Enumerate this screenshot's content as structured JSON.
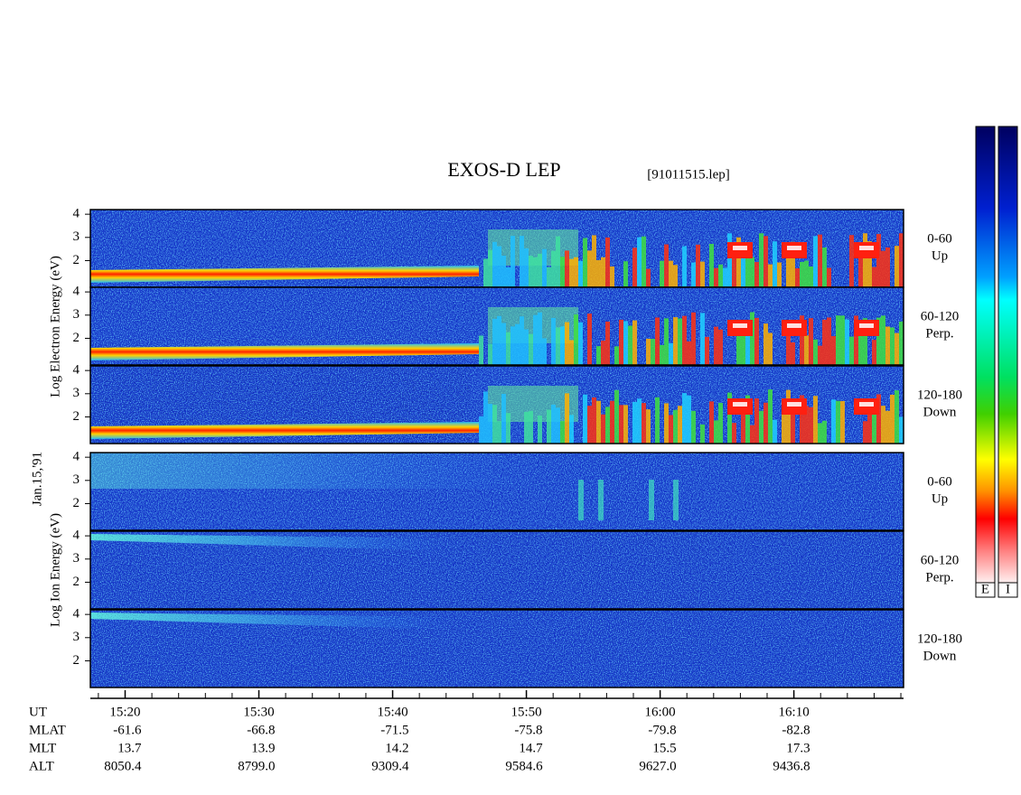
{
  "chart_data": {
    "type": "spectrogram",
    "title": "EXOS-D LEP",
    "file": "[91011515.lep]",
    "date": "Jan.15,'91",
    "xlim": [
      917.4,
      978.2
    ],
    "xticks": [
      {
        "value": 920,
        "label": "15:20"
      },
      {
        "value": 930,
        "label": "15:30"
      },
      {
        "value": 940,
        "label": "15:40"
      },
      {
        "value": 950,
        "label": "15:50"
      },
      {
        "value": 960,
        "label": "16:00"
      },
      {
        "value": 970,
        "label": "16:10"
      }
    ],
    "ylim": [
      0.85,
      4.2
    ],
    "yticks": [
      2,
      3,
      4
    ],
    "groups": [
      {
        "label": "Log Electron Energy (eV)",
        "species": "electron",
        "panels": [
          {
            "pitch": "0-60",
            "direction": "Up"
          },
          {
            "pitch": "60-120",
            "direction": "Perp."
          },
          {
            "pitch": "120-180",
            "direction": "Down"
          }
        ]
      },
      {
        "label": "Log Ion Energy (eV)",
        "species": "ion",
        "panels": [
          {
            "pitch": "0-60",
            "direction": "Up"
          },
          {
            "pitch": "60-120",
            "direction": "Perp."
          },
          {
            "pitch": "120-180",
            "direction": "Down"
          }
        ]
      }
    ],
    "ephemeris": {
      "time_label": "UT",
      "rows": [
        {
          "name": "MLAT",
          "values": [
            "-61.6",
            "-66.8",
            "-71.5",
            "-75.8",
            "-79.8",
            "-82.8"
          ]
        },
        {
          "name": "MLT",
          "values": [
            "13.7",
            "13.9",
            "14.2",
            "14.7",
            "15.5",
            "17.3"
          ]
        },
        {
          "name": "ALT",
          "values": [
            "8050.4",
            "8799.0",
            "9309.4",
            "9584.6",
            "9627.0",
            "9436.8"
          ]
        }
      ]
    },
    "colorbars": [
      "E",
      "I"
    ]
  }
}
